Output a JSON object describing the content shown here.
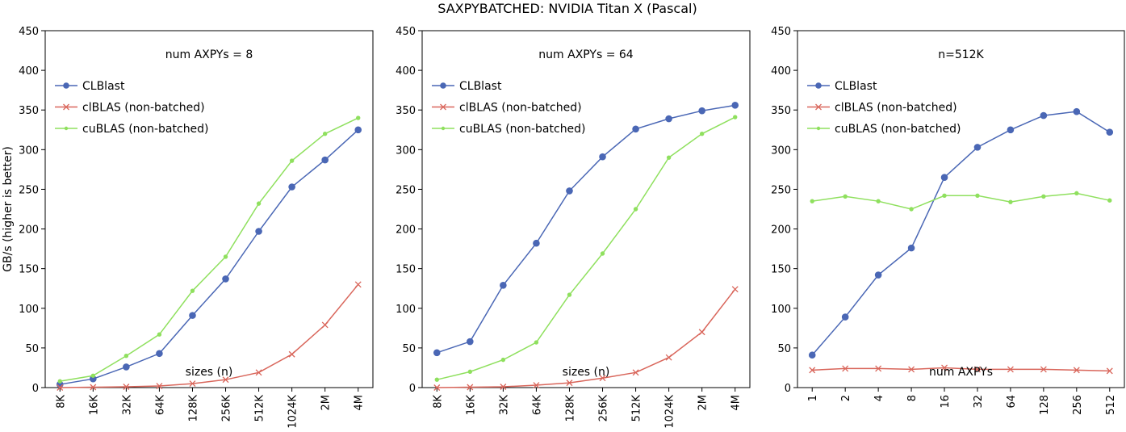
{
  "figure_title": "SAXPYBATCHED: NVIDIA Titan X (Pascal)",
  "ylabel": "GB/s (higher is better)",
  "colors": {
    "clblast": "#4a67b5",
    "clblas": "#d9665b",
    "cublas": "#8fe05e"
  },
  "chart_data": [
    {
      "type": "line",
      "annotation": "num AXPYs = 8",
      "xlabel": "sizes (n)",
      "categories": [
        "8K",
        "16K",
        "32K",
        "64K",
        "128K",
        "256K",
        "512K",
        "1024K",
        "2M",
        "4M"
      ],
      "ylim": [
        0,
        450
      ],
      "yticks": [
        0,
        50,
        100,
        150,
        200,
        250,
        300,
        350,
        400,
        450
      ],
      "legend_position": "top-left",
      "series": [
        {
          "name": "CLBlast",
          "marker": "circle",
          "values": [
            4,
            11,
            26,
            43,
            91,
            137,
            197,
            253,
            287,
            325
          ]
        },
        {
          "name": "clBLAS (non-batched)",
          "marker": "x",
          "values": [
            0,
            0.5,
            1,
            2,
            5,
            10,
            19,
            42,
            79,
            130
          ]
        },
        {
          "name": "cuBLAS (non-batched)",
          "marker": "dot",
          "values": [
            8,
            15,
            40,
            67,
            122,
            165,
            232,
            286,
            320,
            340
          ]
        }
      ]
    },
    {
      "type": "line",
      "annotation": "num AXPYs = 64",
      "xlabel": "sizes (n)",
      "categories": [
        "8K",
        "16K",
        "32K",
        "64K",
        "128K",
        "256K",
        "512K",
        "1024K",
        "2M",
        "4M"
      ],
      "ylim": [
        0,
        450
      ],
      "yticks": [
        0,
        50,
        100,
        150,
        200,
        250,
        300,
        350,
        400,
        450
      ],
      "legend_position": "top-left",
      "series": [
        {
          "name": "CLBlast",
          "marker": "circle",
          "values": [
            44,
            58,
            129,
            182,
            248,
            291,
            326,
            339,
            349,
            356
          ]
        },
        {
          "name": "clBLAS (non-batched)",
          "marker": "x",
          "values": [
            0,
            0.5,
            1,
            3,
            6,
            12,
            19,
            38,
            70,
            124
          ]
        },
        {
          "name": "cuBLAS (non-batched)",
          "marker": "dot",
          "values": [
            10,
            20,
            35,
            57,
            117,
            169,
            225,
            290,
            320,
            341
          ]
        }
      ]
    },
    {
      "type": "line",
      "annotation": "n=512K",
      "xlabel": "num AXPYs",
      "categories": [
        "1",
        "2",
        "4",
        "8",
        "16",
        "32",
        "64",
        "128",
        "256",
        "512"
      ],
      "ylim": [
        0,
        450
      ],
      "yticks": [
        0,
        50,
        100,
        150,
        200,
        250,
        300,
        350,
        400,
        450
      ],
      "legend_position": "top-left",
      "series": [
        {
          "name": "CLBlast",
          "marker": "circle",
          "values": [
            41,
            89,
            142,
            176,
            265,
            303,
            325,
            343,
            348,
            322
          ]
        },
        {
          "name": "clBLAS (non-batched)",
          "marker": "x",
          "values": [
            22,
            24,
            24,
            23,
            25,
            23,
            23,
            23,
            22,
            21
          ]
        },
        {
          "name": "cuBLAS (non-batched)",
          "marker": "dot",
          "values": [
            235,
            241,
            235,
            225,
            242,
            242,
            234,
            241,
            245,
            236
          ]
        }
      ]
    }
  ]
}
